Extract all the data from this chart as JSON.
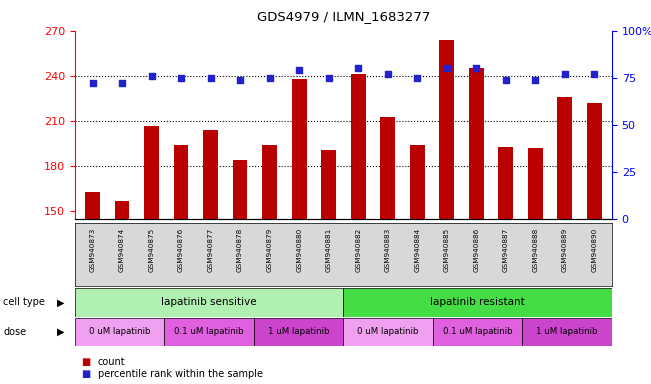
{
  "title": "GDS4979 / ILMN_1683277",
  "samples": [
    "GSM940873",
    "GSM940874",
    "GSM940875",
    "GSM940876",
    "GSM940877",
    "GSM940878",
    "GSM940879",
    "GSM940880",
    "GSM940881",
    "GSM940882",
    "GSM940883",
    "GSM940884",
    "GSM940885",
    "GSM940886",
    "GSM940887",
    "GSM940888",
    "GSM940889",
    "GSM940890"
  ],
  "counts": [
    163,
    157,
    207,
    194,
    204,
    184,
    194,
    238,
    191,
    241,
    213,
    194,
    264,
    245,
    193,
    192,
    226,
    222
  ],
  "percentiles": [
    72,
    72,
    76,
    75,
    75,
    74,
    75,
    79,
    75,
    80,
    77,
    75,
    80,
    80,
    74,
    74,
    77,
    77
  ],
  "cell_type_labels": [
    "lapatinib sensitive",
    "lapatinib resistant"
  ],
  "cell_type_colors": [
    "#b0f0b0",
    "#44dd44"
  ],
  "dose_labels": [
    "0 uM lapatinib",
    "0.1 uM lapatinib",
    "1 uM lapatinib",
    "0 uM lapatinib",
    "0.1 uM lapatinib",
    "1 uM lapatinib"
  ],
  "dose_colors": [
    "#f0a0f0",
    "#e060e0",
    "#cc44cc",
    "#f0a0f0",
    "#e060e0",
    "#cc44cc"
  ],
  "ylim_left": [
    145,
    270
  ],
  "ylim_right": [
    0,
    100
  ],
  "yticks_left": [
    150,
    180,
    210,
    240,
    270
  ],
  "yticks_right": [
    0,
    25,
    50,
    75,
    100
  ],
  "bar_color": "#bb0000",
  "dot_color": "#2222cc",
  "sample_name_bg": "#d8d8d8",
  "plot_bg": "#ffffff",
  "legend_count_color": "#bb0000",
  "legend_pct_color": "#2222cc"
}
